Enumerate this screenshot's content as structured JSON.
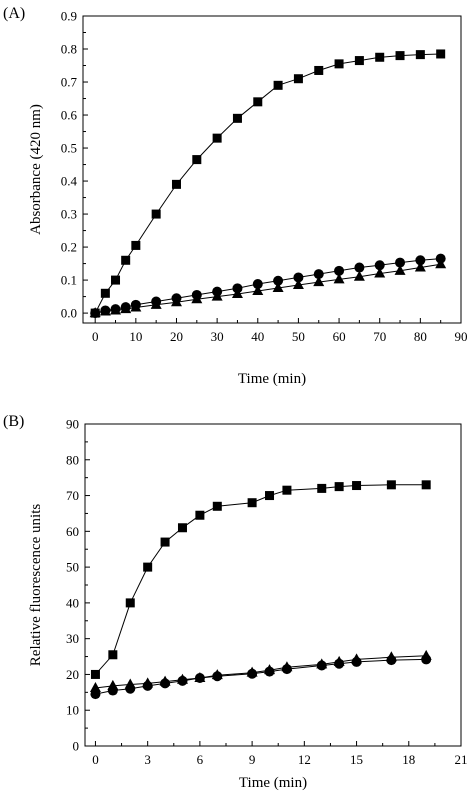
{
  "chart_data": [
    {
      "type": "line",
      "panel_label": "(A)",
      "xlabel": "Time (min)",
      "ylabel": "Absorbance (420 nm)",
      "xlim": [
        -3,
        90
      ],
      "ylim": [
        -0.03,
        0.9
      ],
      "xticks": [
        0,
        10,
        20,
        30,
        40,
        50,
        60,
        70,
        80,
        90
      ],
      "yticks": [
        0.0,
        0.1,
        0.2,
        0.3,
        0.4,
        0.5,
        0.6,
        0.7,
        0.8,
        0.9
      ],
      "xtick_labels": [
        "0",
        "10",
        "20",
        "30",
        "40",
        "50",
        "60",
        "70",
        "80",
        "90"
      ],
      "ytick_labels": [
        "0.0",
        "0.1",
        "0.2",
        "0.3",
        "0.4",
        "0.5",
        "0.6",
        "0.7",
        "0.8",
        "0.9"
      ],
      "grid": false,
      "series": [
        {
          "marker": "square",
          "x": [
            0,
            2.5,
            5,
            7.5,
            10,
            15,
            20,
            25,
            30,
            35,
            40,
            45,
            50,
            55,
            60,
            65,
            70,
            75,
            80,
            85
          ],
          "y": [
            0.0,
            0.06,
            0.1,
            0.16,
            0.205,
            0.3,
            0.39,
            0.465,
            0.53,
            0.59,
            0.64,
            0.69,
            0.71,
            0.735,
            0.755,
            0.765,
            0.775,
            0.78,
            0.783,
            0.785
          ]
        },
        {
          "marker": "circle",
          "x": [
            0,
            2.5,
            5,
            7.5,
            10,
            15,
            20,
            25,
            30,
            35,
            40,
            45,
            50,
            55,
            60,
            65,
            70,
            75,
            80,
            85
          ],
          "y": [
            0.0,
            0.008,
            0.012,
            0.018,
            0.025,
            0.035,
            0.045,
            0.055,
            0.065,
            0.075,
            0.088,
            0.098,
            0.108,
            0.118,
            0.128,
            0.138,
            0.145,
            0.153,
            0.16,
            0.165
          ]
        },
        {
          "marker": "triangle",
          "x": [
            0,
            2.5,
            5,
            7.5,
            10,
            15,
            20,
            25,
            30,
            35,
            40,
            45,
            50,
            55,
            60,
            65,
            70,
            75,
            80,
            85
          ],
          "y": [
            0.0,
            0.005,
            0.008,
            0.012,
            0.017,
            0.025,
            0.033,
            0.042,
            0.05,
            0.058,
            0.067,
            0.076,
            0.085,
            0.094,
            0.102,
            0.11,
            0.12,
            0.128,
            0.138,
            0.148
          ]
        }
      ]
    },
    {
      "type": "line",
      "panel_label": "(B)",
      "xlabel": "Time (min)",
      "ylabel": "Relative fluorescence units",
      "xlim": [
        -0.6,
        21
      ],
      "ylim": [
        0,
        90
      ],
      "xticks": [
        0,
        3,
        6,
        9,
        12,
        15,
        18,
        21
      ],
      "yticks": [
        0,
        10,
        20,
        30,
        40,
        50,
        60,
        70,
        80,
        90
      ],
      "xtick_labels": [
        "0",
        "3",
        "6",
        "9",
        "12",
        "15",
        "18",
        "21"
      ],
      "ytick_labels": [
        "0",
        "10",
        "20",
        "30",
        "40",
        "50",
        "60",
        "70",
        "80",
        "90"
      ],
      "grid": false,
      "series": [
        {
          "marker": "square",
          "x": [
            0,
            1,
            2,
            3,
            4,
            5,
            6,
            7,
            9,
            10,
            11,
            13,
            14,
            15,
            17,
            19
          ],
          "y": [
            20,
            25.5,
            40,
            50,
            57,
            61,
            64.5,
            67,
            68,
            70,
            71.5,
            72,
            72.5,
            72.8,
            73,
            73
          ]
        },
        {
          "marker": "circle",
          "x": [
            0,
            1,
            2,
            3,
            4,
            5,
            6,
            7,
            9,
            10,
            11,
            13,
            14,
            15,
            17,
            19
          ],
          "y": [
            14.5,
            15.5,
            16,
            16.8,
            17.5,
            18.2,
            19,
            19.5,
            20.2,
            20.8,
            21.5,
            22.5,
            23,
            23.5,
            24,
            24.2
          ]
        },
        {
          "marker": "triangle",
          "x": [
            0,
            1,
            2,
            3,
            4,
            5,
            6,
            7,
            9,
            10,
            11,
            13,
            14,
            15,
            17,
            19
          ],
          "y": [
            16.2,
            16.8,
            17.2,
            17.5,
            18,
            18.5,
            19,
            19.8,
            20.5,
            21.2,
            22,
            22.8,
            23.5,
            24.2,
            24.8,
            25.2
          ]
        }
      ]
    }
  ]
}
